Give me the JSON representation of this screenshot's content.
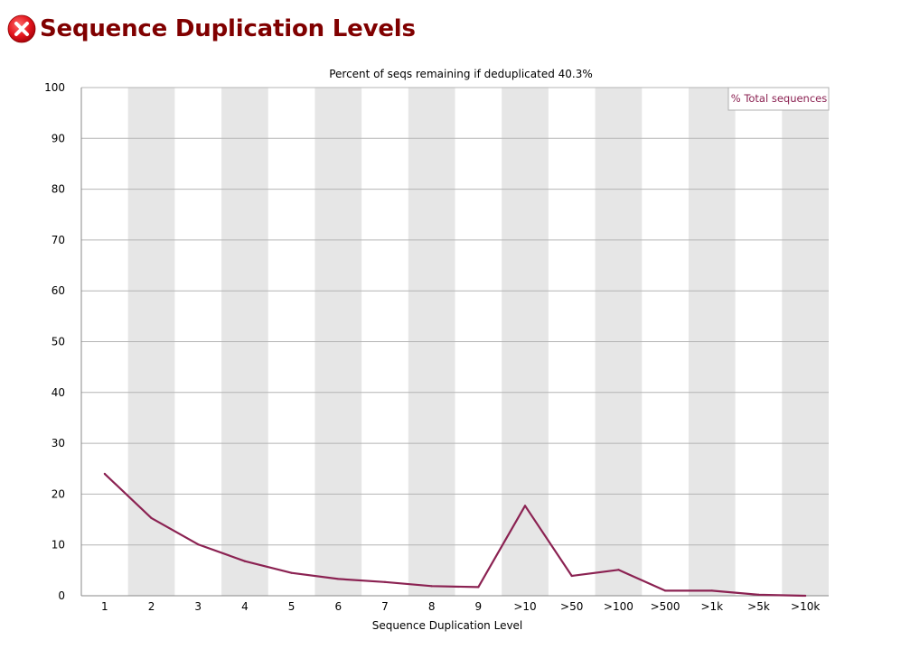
{
  "header": {
    "title": "Sequence Duplication Levels",
    "status_icon": "error-x-icon",
    "status_color": "#e2141c"
  },
  "chart_data": {
    "type": "line",
    "title": "Percent of seqs remaining if deduplicated 40.3%",
    "xlabel": "Sequence Duplication Level",
    "ylabel": "",
    "ylim": [
      0,
      100
    ],
    "yticks": [
      0,
      10,
      20,
      30,
      40,
      50,
      60,
      70,
      80,
      90,
      100
    ],
    "grid": true,
    "legend_position": "top-right",
    "categories": [
      "1",
      "2",
      "3",
      "4",
      "5",
      "6",
      "7",
      "8",
      "9",
      ">10",
      ">50",
      ">100",
      ">500",
      ">1k",
      ">5k",
      ">10k"
    ],
    "series": [
      {
        "name": "% Total sequences",
        "color": "#8b2252",
        "values": [
          24.0,
          15.3,
          10.1,
          6.8,
          4.5,
          3.3,
          2.7,
          1.9,
          1.7,
          17.7,
          3.9,
          5.1,
          1.0,
          1.0,
          0.2,
          0.0
        ]
      }
    ]
  }
}
